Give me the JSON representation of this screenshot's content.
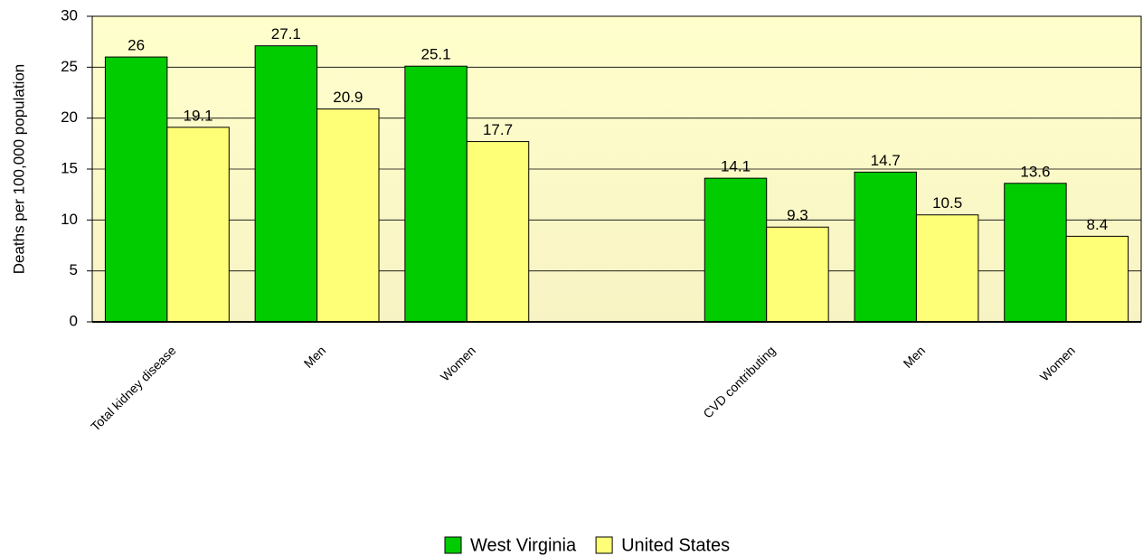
{
  "chart_data": {
    "type": "bar",
    "y_label": "Deaths per 100,000 population",
    "categories": [
      "Total kidney disease",
      "Men",
      "Women",
      null,
      "CVD contributing",
      "Men",
      "Women"
    ],
    "series": [
      {
        "name": "West Virginia",
        "color": "#00cc00",
        "values": [
          26,
          27.1,
          25.1,
          null,
          14.1,
          14.7,
          13.6
        ]
      },
      {
        "name": "United States",
        "color": "#ffff77",
        "values": [
          19.1,
          20.9,
          17.7,
          null,
          9.3,
          10.5,
          8.4
        ]
      }
    ],
    "ylim": [
      0,
      30
    ],
    "yticks": [
      0,
      5,
      10,
      15,
      20,
      25,
      30
    ],
    "grid": true,
    "legend": "bottom"
  }
}
